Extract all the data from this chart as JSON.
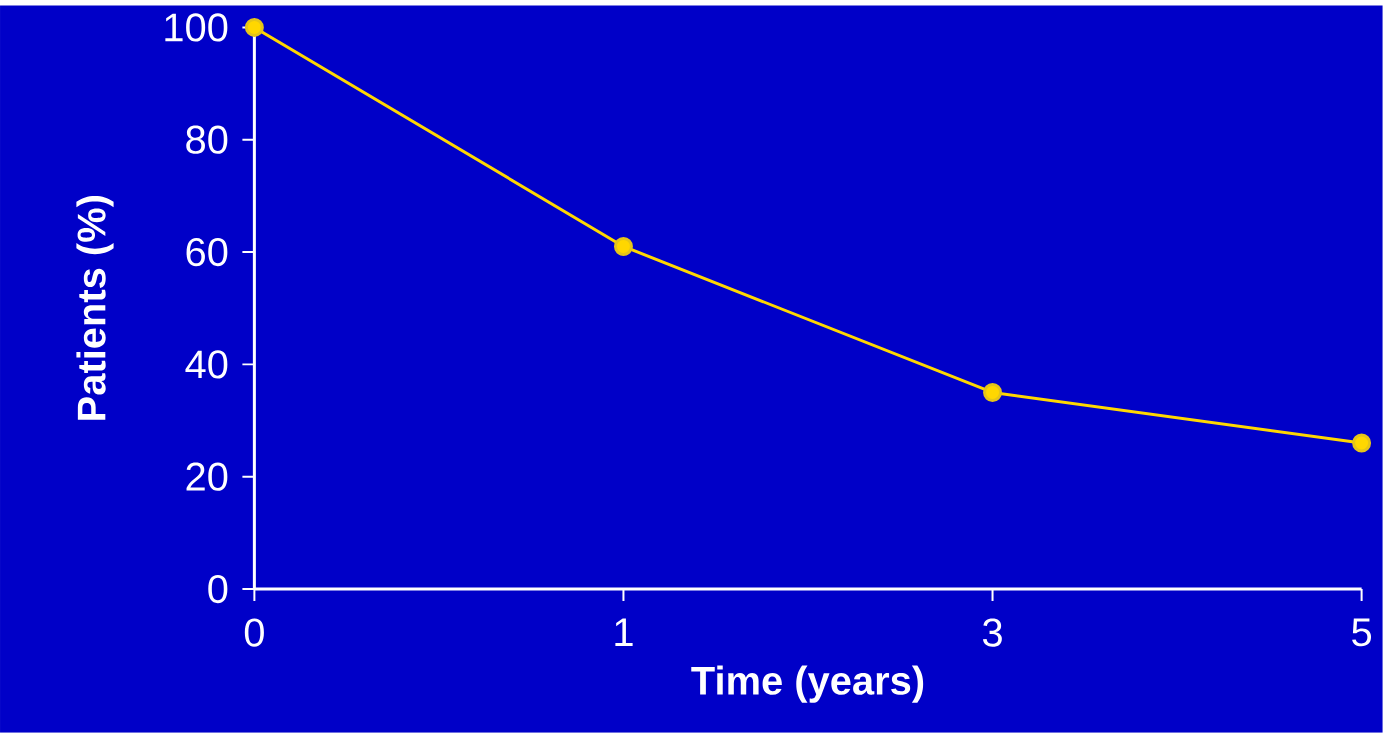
{
  "chart_data": {
    "type": "line",
    "xlabel": "Time (years)",
    "ylabel": "Patients (%)",
    "categories": [
      "0",
      "1",
      "3",
      "5"
    ],
    "series": [
      {
        "color": "#ffd700",
        "values": [
          100,
          61,
          35,
          26
        ]
      }
    ],
    "ylim": [
      0,
      100
    ],
    "yticks": [
      0,
      20,
      40,
      60,
      80,
      100
    ],
    "grid": false,
    "marker": "circle",
    "line_style": "solid"
  }
}
